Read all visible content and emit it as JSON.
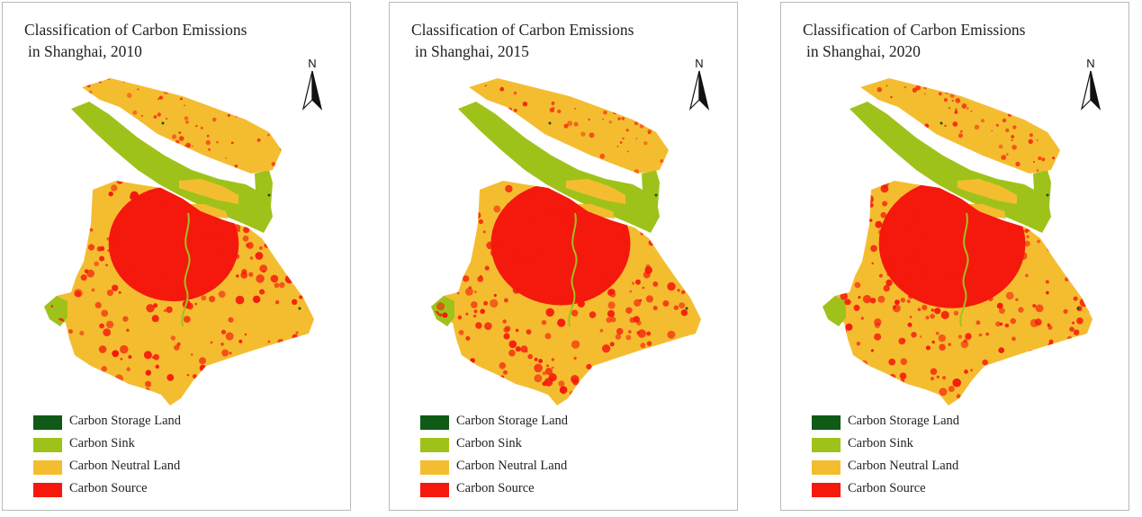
{
  "colors": {
    "storage": "#0f5a16",
    "sink": "#9fc21a",
    "neutral": "#f4bd30",
    "source": "#f5180c",
    "panel_border": "#b9b9b9"
  },
  "north_label": "N",
  "panels": [
    {
      "year": "2010",
      "title_line1": "Classification of Carbon Emissions",
      "title_line2": "in Shanghai, 2010",
      "source_intensity": 0.55
    },
    {
      "year": "2015",
      "title_line1": "Classification of Carbon Emissions",
      "title_line2": "in Shanghai, 2015",
      "source_intensity": 0.75
    },
    {
      "year": "2020",
      "title_line1": "Classification of Carbon Emissions",
      "title_line2": "in Shanghai, 2020",
      "source_intensity": 0.9
    }
  ],
  "legend": [
    {
      "label": "Carbon Storage Land",
      "color": "#0f5a16"
    },
    {
      "label": "Carbon Sink",
      "color": "#9fc21a"
    },
    {
      "label": "Carbon Neutral Land",
      "color": "#f4bd30"
    },
    {
      "label": "Carbon Source",
      "color": "#f5180c"
    }
  ]
}
